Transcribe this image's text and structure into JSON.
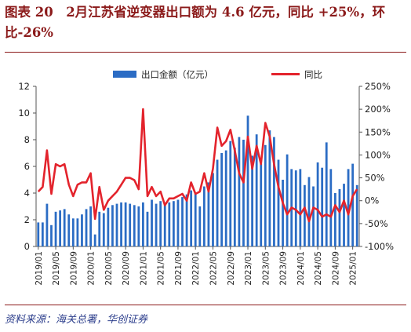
{
  "title": "图表 20　2月江苏省逆变器出口额为 4.6 亿元，同比 +25%，环比-26%",
  "source": "资料来源：海关总署，华创证券",
  "colors": {
    "bar": "#2b6cc4",
    "line": "#e3232c",
    "title": "#8b1a1a",
    "source": "#2c3e8c",
    "axis": "#555555"
  },
  "chart_data": {
    "type": "bar+line",
    "legend": [
      "出口金额（亿元）",
      "同比"
    ],
    "legend_position": "top",
    "x": [
      "2019/01",
      "2019/02",
      "2019/03",
      "2019/04",
      "2019/05",
      "2019/06",
      "2019/07",
      "2019/08",
      "2019/09",
      "2019/10",
      "2019/11",
      "2019/12",
      "2020/01",
      "2020/02",
      "2020/03",
      "2020/04",
      "2020/05",
      "2020/06",
      "2020/07",
      "2020/08",
      "2020/09",
      "2020/10",
      "2020/11",
      "2020/12",
      "2021/01",
      "2021/02",
      "2021/03",
      "2021/04",
      "2021/05",
      "2021/06",
      "2021/07",
      "2021/08",
      "2021/09",
      "2021/10",
      "2021/11",
      "2021/12",
      "2022/01",
      "2022/02",
      "2022/03",
      "2022/04",
      "2022/05",
      "2022/06",
      "2022/07",
      "2022/08",
      "2022/09",
      "2022/10",
      "2022/11",
      "2022/12",
      "2023/01",
      "2023/02",
      "2023/03",
      "2023/04",
      "2023/05",
      "2023/06",
      "2023/07",
      "2023/08",
      "2023/09",
      "2023/10",
      "2023/11",
      "2023/12",
      "2024/01",
      "2024/02",
      "2024/03",
      "2024/04",
      "2024/05",
      "2024/06",
      "2024/07",
      "2024/08",
      "2024/09",
      "2024/10",
      "2024/11",
      "2024/12",
      "2025/01",
      "2025/02"
    ],
    "x_tick_labels": [
      "2019/01",
      "2019/05",
      "2019/09",
      "2020/01",
      "2020/05",
      "2020/09",
      "2021/01",
      "2021/05",
      "2021/09",
      "2022/01",
      "2022/05",
      "2022/09",
      "2023/01",
      "2023/05",
      "2023/09",
      "2024/01",
      "2024/05",
      "2024/09",
      "2025/01"
    ],
    "series": [
      {
        "name": "出口金额（亿元）",
        "type": "bar",
        "axis": "left",
        "values": [
          1.8,
          1.8,
          3.2,
          1.6,
          2.6,
          2.7,
          2.8,
          2.4,
          2.1,
          2.1,
          2.4,
          2.8,
          3.0,
          0.9,
          2.6,
          2.5,
          2.9,
          3.1,
          3.2,
          3.3,
          3.3,
          3.2,
          3.1,
          3.0,
          3.3,
          2.6,
          3.5,
          3.2,
          3.4,
          3.1,
          3.3,
          3.4,
          3.5,
          3.7,
          3.9,
          4.2,
          4.0,
          3.0,
          4.5,
          4.8,
          5.5,
          6.5,
          7.0,
          7.2,
          7.9,
          7.4,
          8.2,
          8.0,
          9.8,
          6.8,
          8.4,
          6.2,
          7.6,
          8.7,
          8.2,
          6.5,
          5.0,
          6.9,
          5.8,
          5.7,
          5.8,
          4.6,
          5.2,
          4.5,
          6.3,
          5.9,
          7.8,
          5.8,
          4.0,
          4.3,
          4.7,
          5.8,
          6.2,
          4.6
        ]
      },
      {
        "name": "同比",
        "type": "line",
        "axis": "right",
        "values": [
          20,
          30,
          110,
          15,
          80,
          75,
          80,
          35,
          10,
          35,
          40,
          40,
          60,
          -40,
          30,
          -20,
          0,
          10,
          20,
          35,
          50,
          50,
          45,
          25,
          200,
          10,
          30,
          10,
          20,
          -10,
          5,
          5,
          10,
          15,
          0,
          40,
          15,
          20,
          60,
          20,
          70,
          160,
          120,
          130,
          155,
          110,
          60,
          40,
          140,
          70,
          120,
          80,
          170,
          140,
          80,
          30,
          -5,
          -30,
          -15,
          -20,
          -30,
          -15,
          -45,
          -15,
          -20,
          -35,
          -30,
          -35,
          -10,
          -25,
          0,
          -30,
          10,
          25
        ]
      }
    ],
    "y_left": {
      "min": 0,
      "max": 12,
      "ticks": [
        "0",
        "2",
        "4",
        "6",
        "8",
        "10",
        "12"
      ]
    },
    "y_right": {
      "min": -100,
      "max": 250,
      "ticks": [
        "-100%",
        "-50%",
        "0%",
        "50%",
        "100%",
        "150%",
        "200%",
        "250%"
      ]
    }
  }
}
